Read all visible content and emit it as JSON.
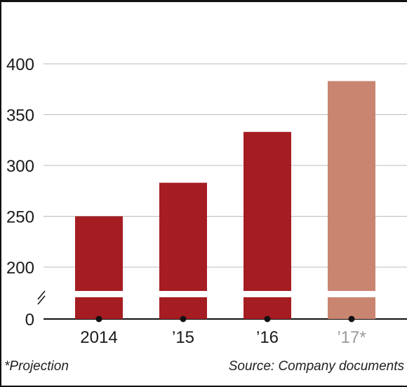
{
  "chart_data": {
    "type": "bar",
    "categories": [
      "2014",
      "’15",
      "’16",
      "’17*"
    ],
    "values": [
      250,
      283,
      333,
      383
    ],
    "projected": [
      false,
      false,
      false,
      true
    ],
    "title": "",
    "xlabel": "",
    "ylabel": "",
    "ylim": [
      0,
      400
    ],
    "axis_break": true,
    "broken_range": [
      0,
      200
    ],
    "yticks": [
      0,
      200,
      250,
      300,
      350,
      400
    ],
    "grid": true,
    "colors": {
      "actual": "#a51d22",
      "projected": "#ca8571",
      "projected_label": "#999999",
      "grid": "#bbbbbb"
    }
  },
  "footnote": "*Projection",
  "source": "Source: Company documents"
}
